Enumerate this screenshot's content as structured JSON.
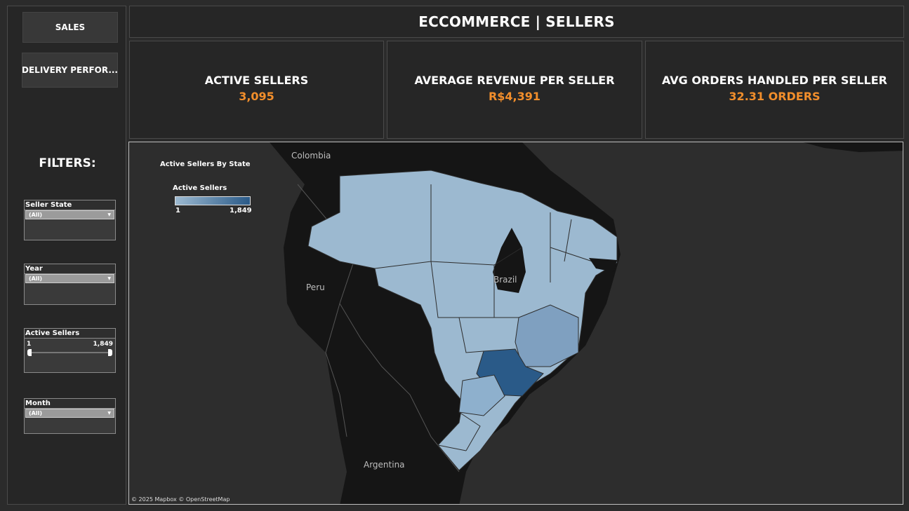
{
  "nav": {
    "sales_label": "SALES",
    "delivery_label": "DELIVERY PERFOR..."
  },
  "filters": {
    "title": "FILTERS:",
    "seller_state": {
      "label": "Seller State",
      "value": "(All)"
    },
    "year": {
      "label": "Year",
      "value": "(All)"
    },
    "active_sellers": {
      "label": "Active Sellers",
      "min": "1",
      "max": "1,849",
      "selected_min": 1,
      "selected_max": 1849
    },
    "month": {
      "label": "Month",
      "value": "(All)"
    }
  },
  "header": {
    "title": "ECCOMMERCE | SELLERS"
  },
  "kpis": [
    {
      "label": "ACTIVE SELLERS",
      "value": "3,095"
    },
    {
      "label": "AVERAGE REVENUE PER SELLER",
      "value": "R$4,391"
    },
    {
      "label": "AVG ORDERS HANDLED PER SELLER",
      "value": "32.31 ORDERS"
    }
  ],
  "map": {
    "title": "Active Sellers By State",
    "legend": {
      "title": "Active Sellers",
      "min": "1",
      "max": "1,849",
      "color_low": "#9cb9d0",
      "color_high": "#2a5a88"
    },
    "place_labels": {
      "colombia": "Colombia",
      "peru": "Peru",
      "brazil": "Brazil",
      "argentina": "Argentina"
    },
    "attribution": "© 2025 Mapbox  © OpenStreetMap"
  },
  "colors": {
    "accent": "#f28e2b",
    "background": "#2b2b2b",
    "panel": "#262626"
  }
}
